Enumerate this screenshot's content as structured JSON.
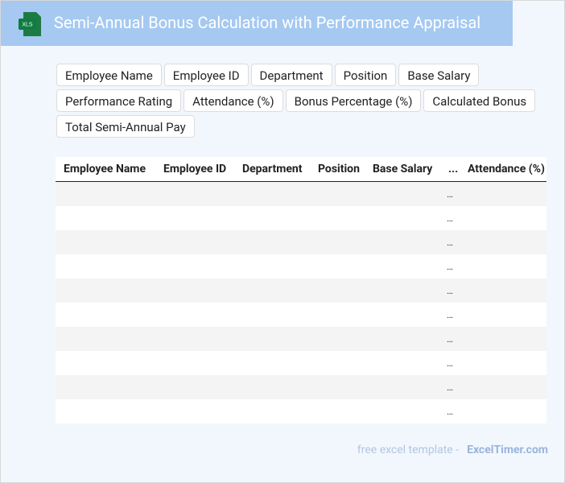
{
  "header": {
    "icon_label": "XLS",
    "title": "Semi-Annual Bonus Calculation with Performance Appraisal"
  },
  "fields": [
    "Employee Name",
    "Employee ID",
    "Department",
    "Position",
    "Base Salary",
    "Performance Rating",
    "Attendance (%)",
    "Bonus Percentage (%)",
    "Calculated Bonus",
    "Total Semi-Annual Pay"
  ],
  "table": {
    "headers": [
      "Employee Name",
      "Employee ID",
      "Department",
      "Position",
      "Base Salary",
      "...",
      "Attendance (%)"
    ],
    "row_ellipses": [
      "…",
      "…",
      "…",
      "…",
      "…",
      "…",
      "…",
      "…",
      "…",
      "…"
    ]
  },
  "footer": {
    "text": "free excel template -",
    "brand": "ExcelTimer.com"
  }
}
